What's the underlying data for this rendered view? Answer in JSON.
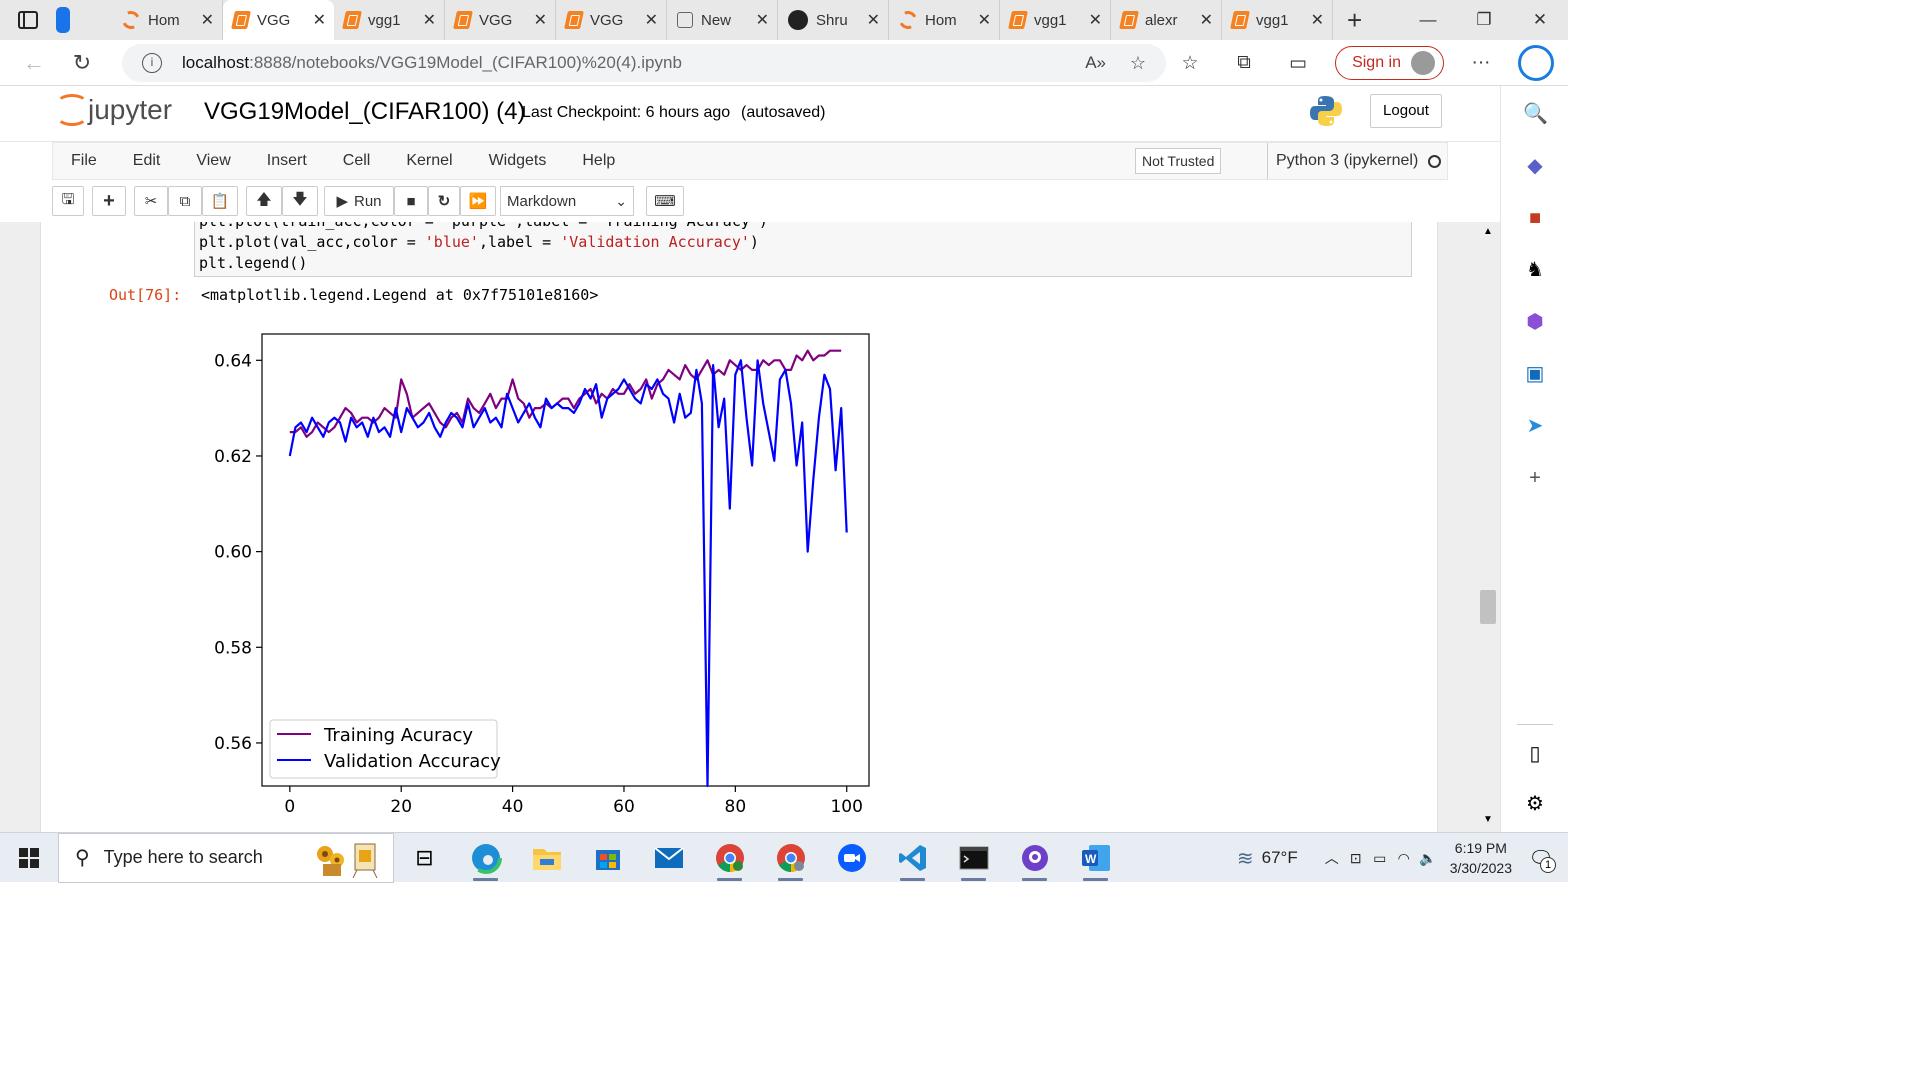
{
  "browser": {
    "tabs": [
      {
        "label": "Hom",
        "icon": "jupyter-icon",
        "active": false
      },
      {
        "label": "VGG",
        "icon": "notebook-icon",
        "active": true
      },
      {
        "label": "vgg1",
        "icon": "notebook-icon",
        "active": false
      },
      {
        "label": "VGG",
        "icon": "notebook-icon",
        "active": false
      },
      {
        "label": "VGG",
        "icon": "notebook-icon",
        "active": false
      },
      {
        "label": "New",
        "icon": "new-tab-icon",
        "active": false
      },
      {
        "label": "Shru",
        "icon": "github-icon",
        "active": false
      },
      {
        "label": "Hom",
        "icon": "jupyter-icon",
        "active": false
      },
      {
        "label": "vgg1",
        "icon": "notebook-icon",
        "active": false
      },
      {
        "label": "alexr",
        "icon": "notebook-icon",
        "active": false
      },
      {
        "label": "vgg1",
        "icon": "notebook-icon",
        "active": false
      }
    ],
    "url_host": "localhost",
    "url_path": ":8888/notebooks/VGG19Model_(CIFAR100)%20(4).ipynb",
    "sign_in": "Sign in"
  },
  "jupyter": {
    "logo_text": "jupyter",
    "notebook_name": "VGG19Model_(CIFAR100) (4)",
    "checkpoint": "Last Checkpoint: 6 hours ago",
    "autosaved": "(autosaved)",
    "logout": "Logout",
    "menu": [
      "File",
      "Edit",
      "View",
      "Insert",
      "Cell",
      "Kernel",
      "Widgets",
      "Help"
    ],
    "trust": "Not Trusted",
    "kernel": "Python 3 (ipykernel)",
    "run_label": "Run",
    "cell_type": "Markdown"
  },
  "cell": {
    "code_line1_a": "plt.plot(val_acc,color = ",
    "code_line1_s1": "'blue'",
    "code_line1_b": ",label = ",
    "code_line1_s2": "'Validation Accuracy'",
    "code_line1_c": ")",
    "code_line2": "plt.legend()",
    "out_prompt": "Out[76]:",
    "out_text": "<matplotlib.legend.Legend at 0x7f75101e8160>"
  },
  "chart_data": {
    "type": "line",
    "x_ticks": [
      "0",
      "20",
      "40",
      "60",
      "80",
      "100"
    ],
    "y_ticks": [
      "0.56",
      "0.58",
      "0.60",
      "0.62",
      "0.64"
    ],
    "xlim": [
      -5,
      104
    ],
    "ylim": [
      0.551,
      0.6455
    ],
    "grid": false,
    "legend_position": "lower-left",
    "series": [
      {
        "name": "Training Acuracy",
        "color": "#800080",
        "values": [
          0.625,
          0.625,
          0.626,
          0.624,
          0.625,
          0.627,
          0.626,
          0.625,
          0.626,
          0.628,
          0.63,
          0.629,
          0.627,
          0.628,
          0.628,
          0.627,
          0.628,
          0.63,
          0.629,
          0.628,
          0.636,
          0.633,
          0.628,
          0.629,
          0.63,
          0.631,
          0.629,
          0.627,
          0.626,
          0.628,
          0.629,
          0.627,
          0.632,
          0.63,
          0.629,
          0.631,
          0.633,
          0.63,
          0.632,
          0.632,
          0.636,
          0.632,
          0.631,
          0.628,
          0.63,
          0.63,
          0.631,
          0.63,
          0.631,
          0.632,
          0.632,
          0.63,
          0.632,
          0.633,
          0.634,
          0.631,
          0.633,
          0.632,
          0.634,
          0.633,
          0.633,
          0.635,
          0.633,
          0.634,
          0.636,
          0.632,
          0.635,
          0.636,
          0.638,
          0.637,
          0.636,
          0.639,
          0.637,
          0.636,
          0.638,
          0.64,
          0.637,
          0.638,
          0.637,
          0.64,
          0.639,
          0.638,
          0.639,
          0.638,
          0.638,
          0.64,
          0.639,
          0.64,
          0.64,
          0.638,
          0.638,
          0.641,
          0.64,
          0.642,
          0.64,
          0.641,
          0.641,
          0.642,
          0.642,
          0.642
        ]
      },
      {
        "name": "Validation Accuracy",
        "color": "#0000ff",
        "values": [
          0.62,
          0.626,
          0.627,
          0.625,
          0.628,
          0.626,
          0.624,
          0.627,
          0.628,
          0.627,
          0.623,
          0.628,
          0.626,
          0.627,
          0.624,
          0.628,
          0.625,
          0.626,
          0.624,
          0.63,
          0.625,
          0.63,
          0.628,
          0.626,
          0.627,
          0.629,
          0.626,
          0.624,
          0.627,
          0.629,
          0.628,
          0.626,
          0.631,
          0.626,
          0.628,
          0.63,
          0.627,
          0.628,
          0.626,
          0.633,
          0.63,
          0.627,
          0.629,
          0.631,
          0.628,
          0.626,
          0.632,
          0.63,
          0.631,
          0.63,
          0.63,
          0.629,
          0.631,
          0.634,
          0.632,
          0.635,
          0.628,
          0.632,
          0.633,
          0.634,
          0.636,
          0.634,
          0.632,
          0.631,
          0.635,
          0.634,
          0.636,
          0.633,
          0.632,
          0.627,
          0.633,
          0.628,
          0.629,
          0.638,
          0.631,
          0.551,
          0.639,
          0.626,
          0.632,
          0.609,
          0.637,
          0.64,
          0.628,
          0.618,
          0.64,
          0.631,
          0.625,
          0.619,
          0.636,
          0.638,
          0.631,
          0.618,
          0.627,
          0.6,
          0.615,
          0.628,
          0.637,
          0.634,
          0.617,
          0.63,
          0.604
        ]
      }
    ]
  },
  "taskbar": {
    "search_placeholder": "Type here to search",
    "temperature": "67°F",
    "time": "6:19 PM",
    "date": "3/30/2023",
    "notifications": "1",
    "apps": [
      "task-view-icon",
      "edge-icon",
      "file-explorer-icon",
      "store-icon",
      "mail-icon",
      "chrome-icon",
      "chrome-profile-icon",
      "zoom-icon",
      "vscode-icon",
      "terminal-icon",
      "github-desktop-icon",
      "word-icon"
    ]
  }
}
